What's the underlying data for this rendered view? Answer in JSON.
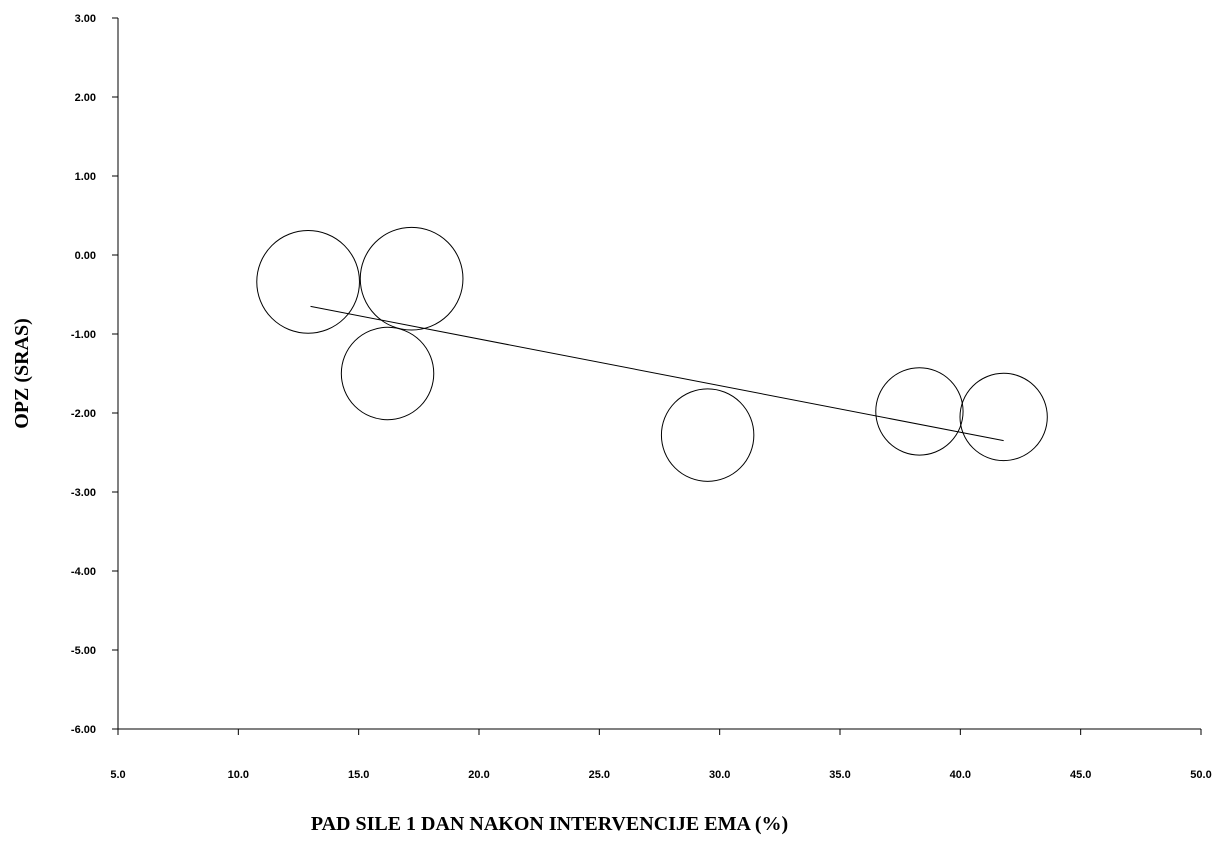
{
  "chart_data": {
    "type": "scatter",
    "subtype": "bubble-meta-regression",
    "title": "",
    "xlabel": "PAD SILE 1 DAN NAKON INTERVENCIJE EMA (%)",
    "ylabel": "OPZ (SRAS)",
    "xlim": [
      5.0,
      50.0
    ],
    "ylim": [
      -6.0,
      3.0
    ],
    "x_ticks": [
      "5.0",
      "10.0",
      "15.0",
      "20.0",
      "25.0",
      "30.0",
      "35.0",
      "40.0",
      "45.0",
      "50.0"
    ],
    "y_ticks": [
      "3.00",
      "2.00",
      "1.00",
      "0.00",
      "-1.00",
      "-2.00",
      "-3.00",
      "-4.00",
      "-5.00",
      "-6.00"
    ],
    "grid": false,
    "points": [
      {
        "x": 12.9,
        "y": -0.34,
        "weight": 1.0
      },
      {
        "x": 17.2,
        "y": -0.3,
        "weight": 1.0
      },
      {
        "x": 16.2,
        "y": -1.5,
        "weight": 0.9
      },
      {
        "x": 29.5,
        "y": -2.28,
        "weight": 0.9
      },
      {
        "x": 38.3,
        "y": -1.98,
        "weight": 0.85
      },
      {
        "x": 41.8,
        "y": -2.05,
        "weight": 0.85
      }
    ],
    "regression_line": {
      "x": [
        13.0,
        41.8
      ],
      "y": [
        -0.65,
        -2.35
      ]
    }
  }
}
